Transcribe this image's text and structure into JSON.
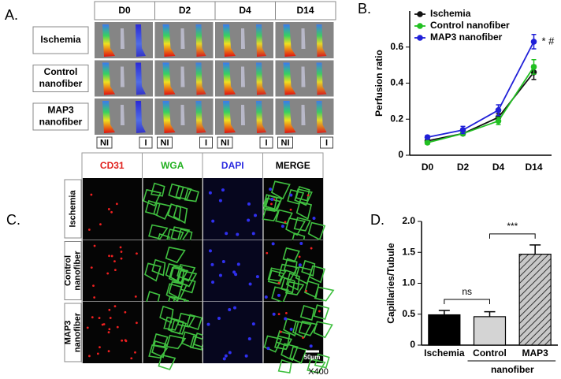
{
  "panel_labels": [
    "A.",
    "B.",
    "C.",
    "D."
  ],
  "panel_a": {
    "columns": [
      "D0",
      "D2",
      "D4",
      "D14"
    ],
    "rows": [
      [
        "Ischemia"
      ],
      [
        "Control",
        "nanofiber"
      ],
      [
        "MAP3",
        "nanofiber"
      ]
    ],
    "limb_labels": [
      "NI",
      "I"
    ]
  },
  "panel_c": {
    "columns": [
      {
        "text": "CD31",
        "color": "#e0201c"
      },
      {
        "text": "WGA",
        "color": "#22b020"
      },
      {
        "text": "DAPI",
        "color": "#2a2ae0"
      },
      {
        "text": "MERGE",
        "color": "#000000"
      }
    ],
    "rows": [
      [
        "Ischemia"
      ],
      [
        "Control",
        "nanofiber"
      ],
      [
        "MAP3",
        "nanofiber"
      ]
    ],
    "scale_bar": "50µm",
    "magnification": "X400"
  },
  "chart_data": [
    {
      "type": "line",
      "ylabel": "Perfusion ratio",
      "categories": [
        "D0",
        "D2",
        "D4",
        "D14"
      ],
      "series": [
        {
          "name": "Ischemia",
          "color": "#111111",
          "values": [
            0.08,
            0.12,
            0.21,
            0.46
          ],
          "errors": [
            0.01,
            0.01,
            0.02,
            0.04
          ]
        },
        {
          "name": "Control nanofiber",
          "color": "#22c022",
          "values": [
            0.07,
            0.12,
            0.19,
            0.49
          ],
          "errors": [
            0.01,
            0.01,
            0.02,
            0.04
          ]
        },
        {
          "name": "MAP3 nanofiber",
          "color": "#2020d8",
          "values": [
            0.1,
            0.14,
            0.25,
            0.63
          ],
          "errors": [
            0.01,
            0.02,
            0.03,
            0.04
          ]
        }
      ],
      "ylim": [
        0,
        0.8
      ],
      "yticks": [
        0,
        0.2,
        0.4,
        0.6
      ],
      "legend": "upper left",
      "annotation": "* #"
    },
    {
      "type": "bar",
      "ylabel": "Capillaries/Tubule",
      "categories": [
        "Ischemia",
        "Control",
        "MAP3"
      ],
      "values": [
        0.49,
        0.46,
        1.47
      ],
      "errors": [
        0.07,
        0.08,
        0.15
      ],
      "colors": [
        "#000000",
        "#d4d4d4",
        "#9a9a9a"
      ],
      "hatched": [
        false,
        false,
        true
      ],
      "group_label": "nanofiber",
      "annotations": [
        "ns",
        "***"
      ],
      "ylim": [
        0,
        2.0
      ],
      "yticks": [
        0,
        0.5,
        {
          "value": 1.0,
          "label": "1.0"
        },
        1.5,
        {
          "value": 2.0,
          "label": "2.0"
        }
      ]
    }
  ]
}
